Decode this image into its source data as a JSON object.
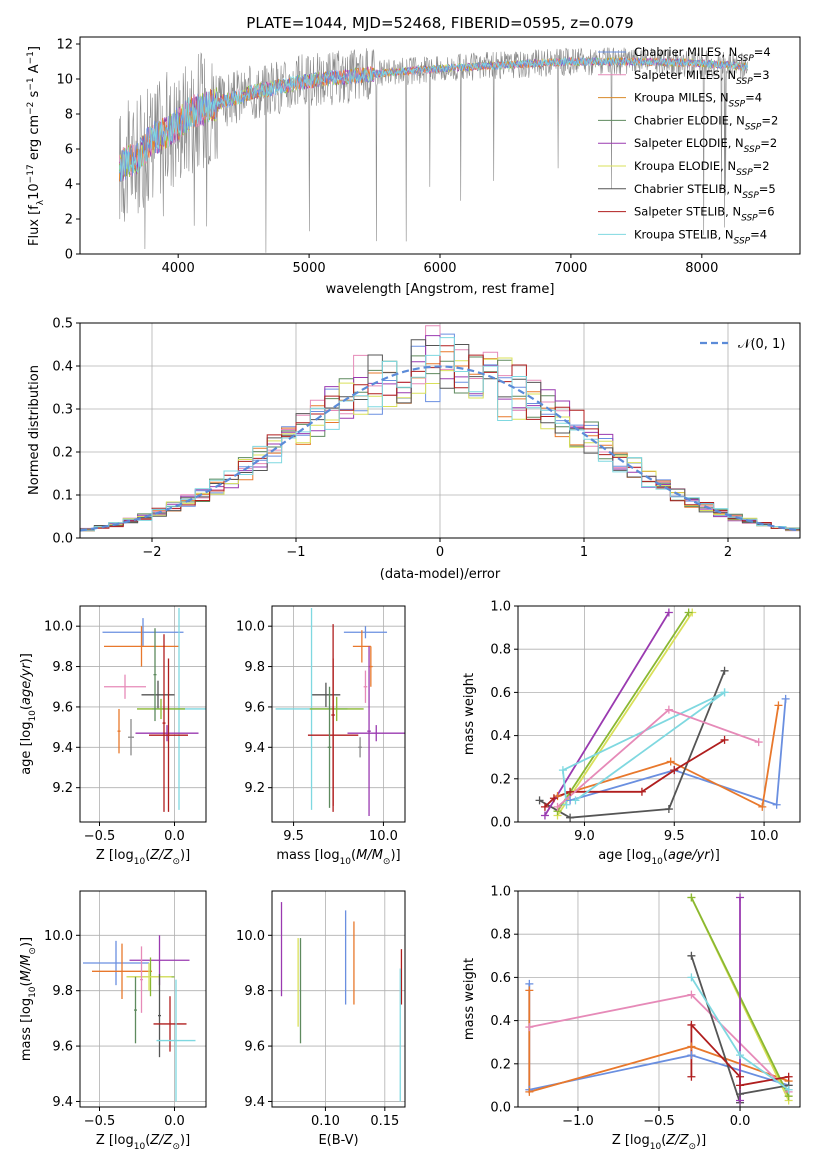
{
  "figure": {
    "title": "PLATE=1044, MJD=52468, FIBERID=0595, z=0.079"
  },
  "colors": {
    "ChabrierMILES": "#6a8fe0",
    "SalpeterMILES": "#e8782c",
    "KroupaMILES": "#d8892a",
    "ChabrierELODIE": "#5e8a5e",
    "SalpeterELODIE": "#9a3ab0",
    "KroupaELODIE": "#d9e05a",
    "ChabrierSTELIB": "#555555",
    "SalpeterSTELIB": "#b01e1e",
    "KroupaSTELIB": "#7fd8e0",
    "pink": "#e68ab8",
    "olive": "#8ab832",
    "gray": "#8a8a8a",
    "normal": "#5b8bd8"
  },
  "chart_data": [
    {
      "id": "spectrum",
      "type": "line",
      "title": "PLATE=1044, MJD=52468, FIBERID=0595, z=0.079",
      "xlabel": "wavelength [Angstrom, rest frame]",
      "ylabel": "Flux [f_λ 10^-17 erg cm^-2 s^-1 A^-1]",
      "xlim": [
        3250,
        8750
      ],
      "ylim": [
        0,
        12.4
      ],
      "xticks": [
        "4000",
        "5000",
        "6000",
        "7000",
        "8000"
      ],
      "yticks": [
        "0",
        "2",
        "4",
        "6",
        "8",
        "10",
        "12"
      ],
      "grid": false,
      "legend_position": "top-right",
      "legend": [
        "Chabrier MILES, N_SSP=4",
        "Salpeter MILES, N_SSP=3",
        "Kroupa MILES, N_SSP=4",
        "Chabrier ELODIE, N_SSP=2",
        "Salpeter ELODIE, N_SSP=2",
        "Kroupa ELODIE, N_SSP=2",
        "Chabrier STELIB, N_SSP=5",
        "Salpeter STELIB, N_SSP=6",
        "Kroupa STELIB, N_SSP=4"
      ],
      "data_range": [
        3550,
        8350
      ],
      "continuum": [
        [
          3550,
          5.0
        ],
        [
          3700,
          5.6
        ],
        [
          3800,
          6.6
        ],
        [
          3900,
          6.9
        ],
        [
          4000,
          7.5
        ],
        [
          4100,
          8.1
        ],
        [
          4300,
          8.6
        ],
        [
          4600,
          9.3
        ],
        [
          5000,
          9.9
        ],
        [
          5500,
          10.3
        ],
        [
          6000,
          10.6
        ],
        [
          6500,
          10.8
        ],
        [
          7000,
          11.0
        ],
        [
          7500,
          11.0
        ],
        [
          8000,
          10.9
        ],
        [
          8350,
          10.7
        ]
      ]
    },
    {
      "id": "residuals",
      "type": "bar",
      "xlabel": "(data-model)/error",
      "ylabel": "Normed distribution",
      "xlim": [
        -2.5,
        2.5
      ],
      "ylim": [
        0,
        0.5
      ],
      "xticks": [
        "−2",
        "−1",
        "0",
        "1",
        "2"
      ],
      "yticks": [
        "0.0",
        "0.1",
        "0.2",
        "0.3",
        "0.4",
        "0.5"
      ],
      "grid": true,
      "bin_width": 0.1,
      "legend_position": "top-right",
      "legend": [
        "𝒩(0, 1)"
      ]
    },
    {
      "id": "age-vs-Z",
      "type": "scatter",
      "xlabel": "Z [log10(Z/Z⊙)]",
      "ylabel": "age  [log10(age/yr)]",
      "xlim": [
        -0.63,
        0.21
      ],
      "ylim": [
        9.03,
        10.1
      ],
      "xticks": [
        "−0.5",
        "0.0"
      ],
      "yticks": [
        "9.2",
        "9.4",
        "9.6",
        "9.8",
        "10.0"
      ],
      "grid": true,
      "points": [
        {
          "color": "ChabrierMILES",
          "x": -0.21,
          "xe": 0.27,
          "y": 9.97,
          "ye": 0.07
        },
        {
          "color": "SalpeterMILES",
          "x": -0.22,
          "xe": 0.25,
          "y": 9.9,
          "ye": 0.1
        },
        {
          "color": "pink",
          "x": -0.33,
          "xe": 0.14,
          "y": 9.7,
          "ye": 0.06
        },
        {
          "color": "ChabrierSTELIB",
          "x": -0.11,
          "xe": 0.11,
          "y": 9.66,
          "ye": 0.07
        },
        {
          "color": "KroupaSTELIB",
          "x": 0.03,
          "xe": 0.18,
          "y": 9.59,
          "ye": 0.5
        },
        {
          "color": "olive",
          "x": -0.09,
          "xe": 0.16,
          "y": 9.59,
          "ye": 0.05
        },
        {
          "color": "SalpeterELODIE",
          "x": -0.05,
          "xe": 0.21,
          "y": 9.47,
          "ye": 0.04
        },
        {
          "color": "SalpeterSTELIB",
          "x": -0.04,
          "xe": 0.13,
          "y": 9.46,
          "ye": 0.38
        },
        {
          "color": "gray",
          "x": -0.29,
          "xe": 0.02,
          "y": 9.45,
          "ye": 0.09
        },
        {
          "color": "SalpeterMILES",
          "x": -0.37,
          "xe": 0.01,
          "y": 9.48,
          "ye": 0.11
        },
        {
          "color": "ChabrierELODIE",
          "x": -0.13,
          "xe": 0.01,
          "y": 9.76,
          "ye": 0.23
        },
        {
          "color": "SalpeterSTELIB",
          "x": -0.07,
          "xe": 0.01,
          "y": 9.52,
          "ye": 0.44
        }
      ]
    },
    {
      "id": "age-vs-mass",
      "type": "scatter",
      "xlabel": "mass [log10(M/M⊙)]",
      "ylabel": "",
      "xlim": [
        9.38,
        10.12
      ],
      "ylim": [
        9.03,
        10.1
      ],
      "xticks": [
        "9.5",
        "10.0"
      ],
      "yticks": [
        "9.2",
        "9.4",
        "9.6",
        "9.8",
        "10.0"
      ],
      "grid": true,
      "points": [
        {
          "color": "ChabrierMILES",
          "x": 9.9,
          "xe": 0.12,
          "y": 9.97,
          "ye": 0.03
        },
        {
          "color": "SalpeterMILES",
          "x": 9.88,
          "xe": 0.05,
          "y": 9.9,
          "ye": 0.08
        },
        {
          "color": "SalpeterMILES",
          "x": 9.93,
          "xe": 0.01,
          "y": 9.8,
          "ye": 0.1
        },
        {
          "color": "pink",
          "x": 9.9,
          "xe": 0.01,
          "y": 9.7,
          "ye": 0.08
        },
        {
          "color": "ChabrierSTELIB",
          "x": 9.68,
          "xe": 0.08,
          "y": 9.66,
          "ye": 0.06
        },
        {
          "color": "KroupaSTELIB",
          "x": 9.6,
          "xe": 0.2,
          "y": 9.59,
          "ye": 0.5
        },
        {
          "color": "olive",
          "x": 9.74,
          "xe": 0.15,
          "y": 9.59,
          "ye": 0.06
        },
        {
          "color": "SalpeterELODIE",
          "x": 9.96,
          "xe": 0.16,
          "y": 9.47,
          "ye": 0.04
        },
        {
          "color": "SalpeterSTELIB",
          "x": 9.72,
          "xe": 0.14,
          "y": 9.46,
          "ye": 0.38
        },
        {
          "color": "SalpeterSTELIB",
          "x": 9.72,
          "xe": 0.01,
          "y": 9.56,
          "ye": 0.45
        },
        {
          "color": "SalpeterELODIE",
          "x": 9.92,
          "xe": 0.01,
          "y": 9.48,
          "ye": 0.42
        },
        {
          "color": "ChabrierELODIE",
          "x": 9.7,
          "xe": 0.01,
          "y": 9.4,
          "ye": 0.3
        },
        {
          "color": "gray",
          "x": 9.87,
          "xe": 0.01,
          "y": 9.4,
          "ye": 0.05
        }
      ]
    },
    {
      "id": "weight-vs-age",
      "type": "line",
      "xlabel": "age  [log10(age/yr)]",
      "ylabel": "mass weight",
      "xlim": [
        8.63,
        10.2
      ],
      "ylim": [
        0,
        1
      ],
      "xticks": [
        "9.0",
        "9.5",
        "10.0"
      ],
      "yticks": [
        "0.0",
        "0.2",
        "0.4",
        "0.6",
        "0.8",
        "1.0"
      ],
      "grid": true,
      "series": [
        {
          "color": "ChabrierMILES",
          "points": [
            [
              8.92,
              0.1
            ],
            [
              9.5,
              0.24
            ],
            [
              10.07,
              0.08
            ],
            [
              10.12,
              0.57
            ]
          ]
        },
        {
          "color": "SalpeterMILES",
          "points": [
            [
              8.85,
              0.12
            ],
            [
              9.48,
              0.28
            ],
            [
              9.99,
              0.07
            ],
            [
              10.08,
              0.54
            ]
          ]
        },
        {
          "color": "ChabrierSTELIB",
          "points": [
            [
              8.75,
              0.1
            ],
            [
              8.92,
              0.02
            ],
            [
              9.47,
              0.06
            ],
            [
              9.78,
              0.7
            ]
          ]
        },
        {
          "color": "SalpeterSTELIB",
          "points": [
            [
              8.78,
              0.07
            ],
            [
              8.83,
              0.11
            ],
            [
              8.92,
              0.14
            ],
            [
              9.32,
              0.14
            ],
            [
              9.5,
              0.24
            ],
            [
              9.78,
              0.38
            ]
          ]
        },
        {
          "color": "SalpeterELODIE",
          "points": [
            [
              8.78,
              0.03
            ],
            [
              9.47,
              0.97
            ]
          ]
        },
        {
          "color": "KroupaELODIE",
          "points": [
            [
              8.85,
              0.03
            ],
            [
              9.6,
              0.97
            ]
          ]
        },
        {
          "color": "olive",
          "points": [
            [
              8.85,
              0.05
            ],
            [
              9.58,
              0.97
            ]
          ]
        },
        {
          "color": "KroupaSTELIB",
          "points": [
            [
              8.9,
              0.08
            ],
            [
              8.88,
              0.24
            ],
            [
              9.78,
              0.6
            ]
          ]
        },
        {
          "color": "KroupaSTELIB",
          "points": [
            [
              8.95,
              0.1
            ],
            [
              9.78,
              0.6
            ]
          ]
        },
        {
          "color": "pink",
          "points": [
            [
              8.85,
              0.07
            ],
            [
              9.47,
              0.52
            ],
            [
              9.97,
              0.37
            ]
          ]
        }
      ]
    },
    {
      "id": "mass-vs-Z",
      "type": "scatter",
      "xlabel": "Z [log10(Z/Z⊙)]",
      "ylabel": "mass [log10(M/M⊙)]",
      "xlim": [
        -0.63,
        0.21
      ],
      "ylim": [
        9.38,
        10.16
      ],
      "xticks": [
        "−0.5",
        "0.0"
      ],
      "yticks": [
        "9.4",
        "9.6",
        "9.8",
        "10.0"
      ],
      "grid": true,
      "points": [
        {
          "color": "ChabrierMILES",
          "x": -0.39,
          "xe": 0.22,
          "y": 9.9,
          "ye": 0.08
        },
        {
          "color": "SalpeterMILES",
          "x": -0.35,
          "xe": 0.2,
          "y": 9.87,
          "ye": 0.1
        },
        {
          "color": "SalpeterELODIE",
          "x": -0.1,
          "xe": 0.2,
          "y": 9.91,
          "ye": 0.09
        },
        {
          "color": "olive",
          "x": -0.16,
          "xe": 0.16,
          "y": 9.85,
          "ye": 0.07
        },
        {
          "color": "KroupaELODIE",
          "x": -0.17,
          "xe": 0.15,
          "y": 9.85,
          "ye": 0.05
        },
        {
          "color": "ChabrierELODIE",
          "x": -0.26,
          "xe": 0.01,
          "y": 9.73,
          "ye": 0.12
        },
        {
          "color": "ChabrierSTELIB",
          "x": -0.1,
          "xe": 0.01,
          "y": 9.71,
          "ye": 0.15
        },
        {
          "color": "SalpeterSTELIB",
          "x": -0.03,
          "xe": 0.11,
          "y": 9.68,
          "ye": 0.1
        },
        {
          "color": "KroupaSTELIB",
          "x": 0.01,
          "xe": 0.13,
          "y": 9.62,
          "ye": 0.22
        },
        {
          "color": "pink",
          "x": -0.22,
          "xe": 0.01,
          "y": 9.84,
          "ye": 0.12
        }
      ]
    },
    {
      "id": "mass-vs-EBV",
      "type": "scatter",
      "xlabel": "E(B-V)",
      "ylabel": "",
      "xlim": [
        0.055,
        0.167
      ],
      "ylim": [
        9.38,
        10.16
      ],
      "xticks": [
        "0.10",
        "0.15"
      ],
      "yticks": [
        "9.4",
        "9.6",
        "9.8",
        "10.0"
      ],
      "grid": true,
      "points": [
        {
          "color": "SalpeterELODIE",
          "x": 0.063,
          "xe": 0.0,
          "y": 9.95,
          "ye": 0.17
        },
        {
          "color": "KroupaELODIE",
          "x": 0.077,
          "xe": 0.0,
          "y": 9.83,
          "ye": 0.16
        },
        {
          "color": "ChabrierELODIE",
          "x": 0.079,
          "xe": 0.0,
          "y": 9.8,
          "ye": 0.19
        },
        {
          "color": "ChabrierMILES",
          "x": 0.117,
          "xe": 0.0,
          "y": 9.92,
          "ye": 0.17
        },
        {
          "color": "SalpeterMILES",
          "x": 0.124,
          "xe": 0.0,
          "y": 9.9,
          "ye": 0.15
        },
        {
          "color": "SalpeterSTELIB",
          "x": 0.164,
          "xe": 0.0,
          "y": 9.85,
          "ye": 0.1
        },
        {
          "color": "KroupaSTELIB",
          "x": 0.163,
          "xe": 0.0,
          "y": 9.64,
          "ye": 0.24
        }
      ]
    },
    {
      "id": "weight-vs-Z",
      "type": "line",
      "xlabel": "Z [log10(Z/Z⊙)]",
      "ylabel": "mass weight",
      "xlim": [
        -1.37,
        0.37
      ],
      "ylim": [
        0,
        1
      ],
      "xticks": [
        "−1.0",
        "−0.5",
        "0.0"
      ],
      "yticks": [
        "0.0",
        "0.2",
        "0.4",
        "0.6",
        "0.8",
        "1.0"
      ],
      "grid": true,
      "series": [
        {
          "color": "ChabrierMILES",
          "points": [
            [
              -1.3,
              0.57
            ],
            [
              -1.3,
              0.08
            ],
            [
              -0.3,
              0.24
            ],
            [
              0.3,
              0.1
            ]
          ]
        },
        {
          "color": "SalpeterMILES",
          "points": [
            [
              -1.3,
              0.54
            ],
            [
              -1.3,
              0.07
            ],
            [
              -0.3,
              0.28
            ],
            [
              0.3,
              0.12
            ]
          ]
        },
        {
          "color": "pink",
          "points": [
            [
              -1.3,
              0.37
            ],
            [
              -0.3,
              0.52
            ],
            [
              0.3,
              0.07
            ]
          ]
        },
        {
          "color": "KroupaELODIE",
          "points": [
            [
              -0.3,
              0.97
            ],
            [
              0.3,
              0.03
            ]
          ]
        },
        {
          "color": "olive",
          "points": [
            [
              -0.3,
              0.97
            ],
            [
              0.3,
              0.05
            ]
          ]
        },
        {
          "color": "ChabrierSTELIB",
          "points": [
            [
              -0.3,
              0.7
            ],
            [
              0.0,
              0.02
            ],
            [
              0.0,
              0.06
            ],
            [
              0.3,
              0.1
            ]
          ]
        },
        {
          "color": "SalpeterSTELIB",
          "points": [
            [
              -0.3,
              0.14
            ],
            [
              -0.3,
              0.38
            ],
            [
              0.0,
              0.14
            ],
            [
              0.0,
              0.1
            ],
            [
              0.3,
              0.14
            ]
          ]
        },
        {
          "color": "SalpeterELODIE",
          "points": [
            [
              0.0,
              0.97
            ],
            [
              0.0,
              0.03
            ]
          ]
        },
        {
          "color": "KroupaSTELIB",
          "points": [
            [
              -0.3,
              0.6
            ],
            [
              0.0,
              0.24
            ],
            [
              0.3,
              0.08
            ]
          ]
        }
      ]
    }
  ]
}
